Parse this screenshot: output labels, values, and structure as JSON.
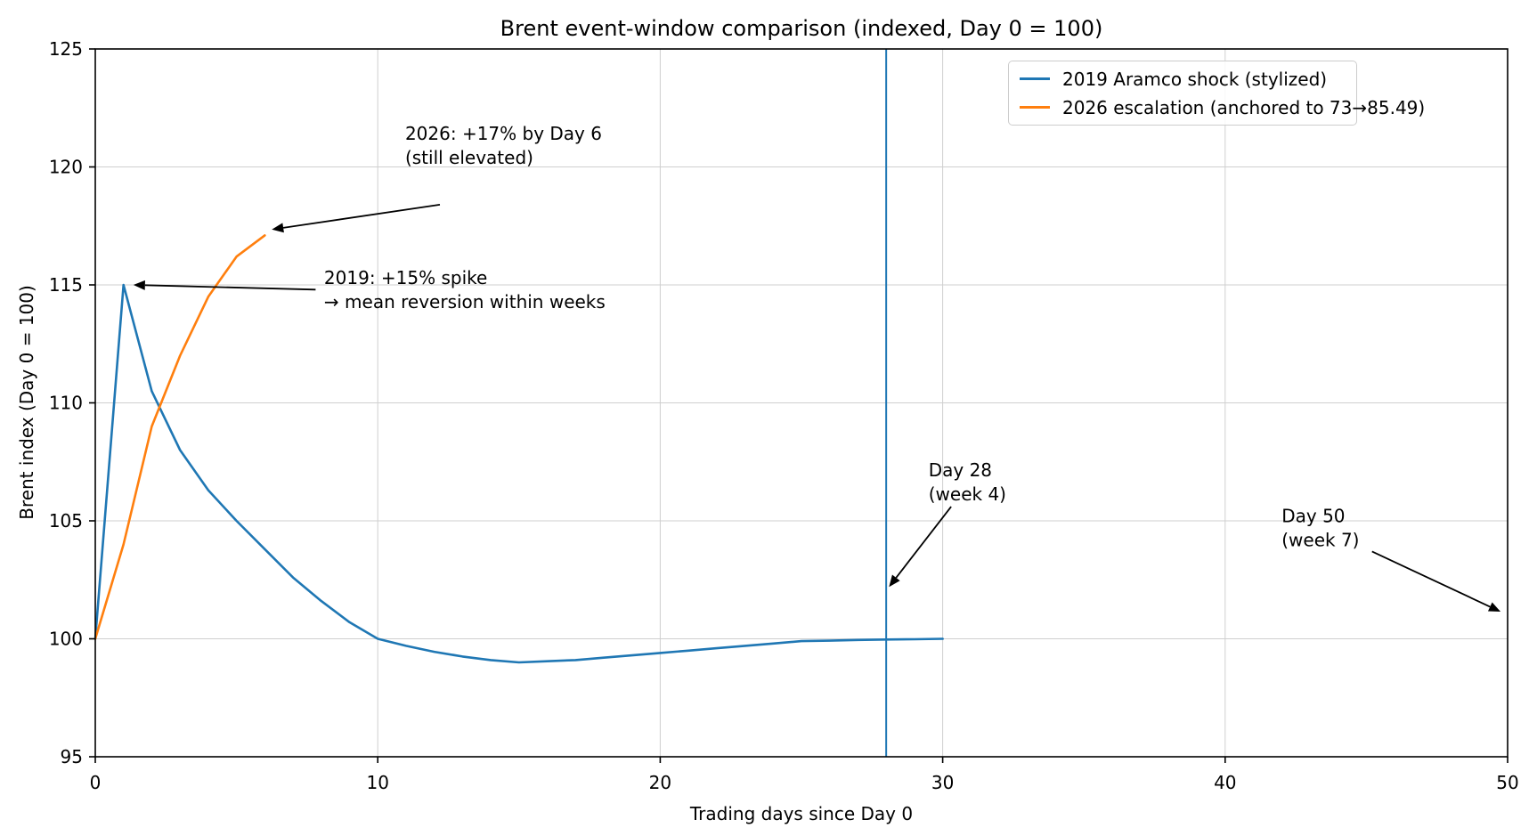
{
  "chart_data": {
    "type": "line",
    "title": "Brent event-window comparison (indexed, Day 0 = 100)",
    "xlabel": "Trading days since Day 0",
    "ylabel": "Brent index (Day 0 = 100)",
    "xlim": [
      0,
      50
    ],
    "ylim": [
      95,
      125
    ],
    "x_ticks": [
      0,
      10,
      20,
      30,
      40,
      50
    ],
    "y_ticks": [
      95,
      100,
      105,
      110,
      115,
      120,
      125
    ],
    "grid": true,
    "legend_position": "upper right",
    "series": [
      {
        "name": "2019 Aramco shock (stylized)",
        "color": "#1f77b4",
        "x": [
          0,
          1,
          2,
          3,
          4,
          5,
          6,
          7,
          8,
          9,
          10,
          11,
          12,
          13,
          14,
          15,
          16,
          17,
          18,
          19,
          20,
          21,
          22,
          23,
          24,
          25,
          26,
          27,
          28,
          29,
          30
        ],
        "y": [
          100,
          115,
          110.5,
          108,
          106.3,
          105,
          103.8,
          102.6,
          101.6,
          100.7,
          100,
          99.7,
          99.45,
          99.25,
          99.1,
          99,
          99.05,
          99.1,
          99.2,
          99.3,
          99.4,
          99.5,
          99.6,
          99.7,
          99.8,
          99.9,
          99.92,
          99.95,
          99.97,
          99.98,
          100
        ]
      },
      {
        "name": "2026 escalation (anchored to 73→85.49)",
        "color": "#ff7f0e",
        "x": [
          0,
          1,
          2,
          3,
          4,
          5,
          6
        ],
        "y": [
          100,
          104,
          109,
          112,
          114.5,
          116.2,
          117.1
        ]
      }
    ],
    "vline": {
      "x": 28,
      "color": "#1f77b4"
    },
    "annotations": [
      {
        "id": "annotation-2026-peak",
        "lines": [
          "2026: +17% by Day 6",
          "(still elevated)"
        ],
        "text_xy": [
          10.97,
          121.9
        ],
        "arrow_from": [
          12.2,
          118.4
        ],
        "arrow_to": [
          6.25,
          117.35
        ]
      },
      {
        "id": "annotation-2019-spike",
        "lines": [
          "2019: +15% spike",
          "→ mean reversion within weeks"
        ],
        "text_xy": [
          8.1,
          115.8
        ],
        "arrow_from": [
          7.8,
          114.8
        ],
        "arrow_to": [
          1.35,
          115.0
        ]
      },
      {
        "id": "annotation-day-28",
        "lines": [
          "Day 28",
          "(week 4)"
        ],
        "text_xy": [
          29.5,
          107.65
        ],
        "arrow_from": [
          30.3,
          105.6
        ],
        "arrow_to": [
          28.1,
          102.2
        ]
      },
      {
        "id": "annotation-day-50",
        "lines": [
          "Day 50",
          "(week 7)"
        ],
        "text_xy": [
          42.0,
          105.7
        ],
        "arrow_from": [
          45.2,
          103.7
        ],
        "arrow_to": [
          49.75,
          101.15
        ]
      }
    ],
    "colors": {
      "grid": "#cfcfcf",
      "spine": "#000000",
      "annotation": "#000000"
    }
  }
}
